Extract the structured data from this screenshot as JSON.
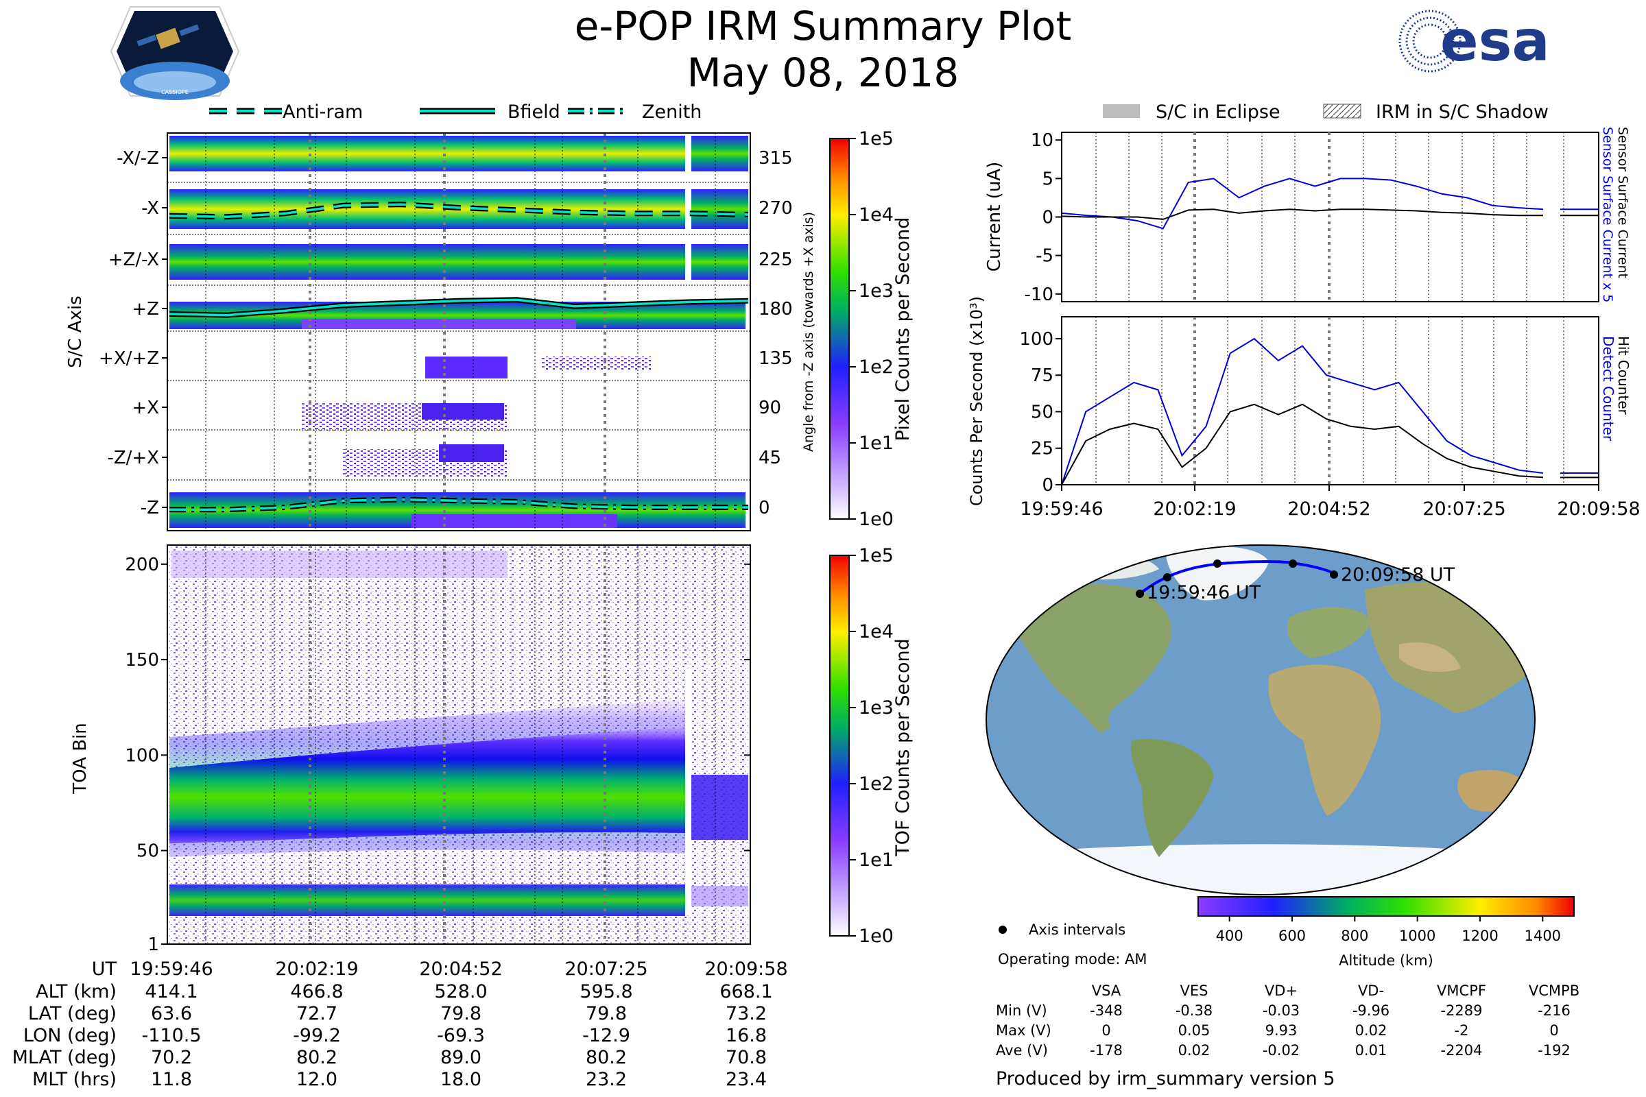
{
  "header": {
    "title": "e-POP IRM Summary Plot",
    "date": "May 08, 2018",
    "logo_left_text": "CASSIOPE",
    "logo_right_text": "esa"
  },
  "legend_top": {
    "items": [
      "Anti-ram",
      "Bfield",
      "Zenith"
    ],
    "eclipse": "S/C in Eclipse",
    "shadow": "IRM in S/C Shadow"
  },
  "colors": {
    "accent": "#00e5c8",
    "blue": "#0000dd",
    "black": "#000000"
  },
  "chart_data": [
    {
      "type": "heatmap",
      "name": "pixel-panel",
      "ylabel": "S/C Axis",
      "ylabel_right": "Angle from -Z axis (towards +X axis)",
      "rows": [
        "-X/-Z",
        "-X",
        "+Z/-X",
        "+Z",
        "+X/+Z",
        "+X",
        "-Z/+X",
        "-Z"
      ],
      "angle_ticks": [
        "315",
        "270",
        "225",
        "180",
        "135",
        "90",
        "45",
        "0"
      ],
      "colorbar": {
        "label": "Pixel Counts per Second",
        "ticks": [
          "1e5",
          "1e4",
          "1e3",
          "1e2",
          "1e1",
          "1e0"
        ]
      },
      "lines": [
        {
          "name": "Anti-ram",
          "angle": [
            263,
            262,
            265,
            272,
            273,
            270,
            268,
            266,
            265,
            265,
            264
          ]
        },
        {
          "name": "Bfield",
          "angle": [
            175,
            174,
            178,
            183,
            185,
            187,
            188,
            182,
            184,
            186,
            187
          ]
        },
        {
          "name": "Zenith",
          "angle": [
            -2,
            -2,
            0,
            6,
            7,
            6,
            5,
            1,
            0,
            0,
            0
          ]
        }
      ]
    },
    {
      "type": "heatmap",
      "name": "toa-panel",
      "ylabel": "TOA Bin",
      "yticks": [
        "200",
        "150",
        "100",
        "50",
        "1"
      ],
      "ylim": [
        1,
        210
      ],
      "colorbar": {
        "label": "TOF Counts per Second",
        "ticks": [
          "1e5",
          "1e4",
          "1e3",
          "1e2",
          "1e1",
          "1e0"
        ]
      }
    },
    {
      "type": "line",
      "name": "current-panel",
      "ylabel": "Current (uA)",
      "yticks": [
        "10",
        "5",
        "0",
        "-5",
        "-10"
      ],
      "ylim": [
        -11,
        11
      ],
      "right_labels": [
        "Sensor Surface Current x 5",
        "Sensor Surface Current"
      ],
      "series": [
        {
          "name": "Sensor Surface Current x 5",
          "values": [
            0.5,
            0.2,
            0.0,
            -0.5,
            -1.5,
            4.5,
            5.0,
            2.5,
            4.0,
            5.0,
            4.0,
            5.0,
            5.0,
            4.8,
            4.0,
            3.0,
            2.5,
            1.5,
            1.2,
            1.0
          ]
        },
        {
          "name": "Sensor Surface Current",
          "values": [
            0.1,
            0.0,
            0.0,
            0.0,
            -0.3,
            0.9,
            1.0,
            0.5,
            0.8,
            1.0,
            0.8,
            1.0,
            1.0,
            0.9,
            0.8,
            0.6,
            0.5,
            0.3,
            0.2,
            0.2
          ]
        }
      ]
    },
    {
      "type": "line",
      "name": "counts-panel",
      "ylabel": "Counts Per Second (x10³)",
      "yticks": [
        "100",
        "75",
        "50",
        "25",
        "0"
      ],
      "ylim": [
        0,
        115
      ],
      "xticks": [
        "19:59:46",
        "20:02:19",
        "20:04:52",
        "20:07:25",
        "20:09:58"
      ],
      "right_labels": [
        "Detect Counter",
        "Hit Counter"
      ],
      "series": [
        {
          "name": "Detect Counter",
          "values": [
            0,
            50,
            60,
            70,
            65,
            20,
            40,
            90,
            100,
            85,
            95,
            75,
            70,
            65,
            70,
            50,
            30,
            20,
            15,
            10,
            8
          ]
        },
        {
          "name": "Hit Counter",
          "values": [
            0,
            30,
            38,
            42,
            38,
            12,
            25,
            50,
            55,
            48,
            55,
            45,
            40,
            38,
            40,
            28,
            18,
            12,
            9,
            6,
            5
          ]
        }
      ]
    }
  ],
  "time_table": {
    "header": [
      "UT",
      "19:59:46",
      "20:02:19",
      "20:04:52",
      "20:07:25",
      "20:09:58"
    ],
    "rows": [
      [
        "ALT (km)",
        "414.1",
        "466.8",
        "528.0",
        "595.8",
        "668.1"
      ],
      [
        "LAT (deg)",
        "63.6",
        "72.7",
        "79.8",
        "79.8",
        "73.2"
      ],
      [
        "LON (deg)",
        "-110.5",
        "-99.2",
        "-69.3",
        "-12.9",
        "16.8"
      ],
      [
        "MLAT (deg)",
        "70.2",
        "80.2",
        "89.0",
        "80.2",
        "70.8"
      ],
      [
        "MLT (hrs)",
        "11.8",
        "12.0",
        "18.0",
        "23.2",
        "23.4"
      ]
    ]
  },
  "map": {
    "start_label": "19:59:46 UT",
    "end_label": "20:09:58 UT",
    "legend_label": "Axis intervals",
    "mode": "Operating mode: AM",
    "altitude_label": "Altitude (km)",
    "altitude_ticks": [
      "400",
      "600",
      "800",
      "1000",
      "1200",
      "1400"
    ]
  },
  "voltage_table": {
    "columns": [
      "VSA",
      "VES",
      "VD+",
      "VD-",
      "VMCPF",
      "VCMPB"
    ],
    "rows": [
      {
        "label": "Min (V)",
        "values": [
          "-348",
          "-0.38",
          "-0.03",
          "-9.96",
          "-2289",
          "-216"
        ]
      },
      {
        "label": "Max (V)",
        "values": [
          "0",
          "0.05",
          "9.93",
          "0.02",
          "-2",
          "0"
        ]
      },
      {
        "label": "Ave (V)",
        "values": [
          "-178",
          "0.02",
          "-0.02",
          "0.01",
          "-2204",
          "-192"
        ]
      }
    ]
  },
  "footer": "Produced by irm_summary version 5"
}
